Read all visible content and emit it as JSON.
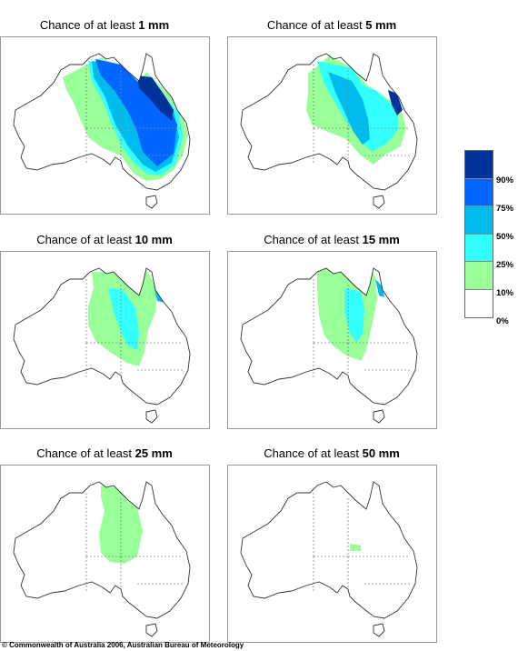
{
  "panels": [
    {
      "prefix": "Chance of at least ",
      "amount": "1 mm",
      "level": 1
    },
    {
      "prefix": "Chance of at least ",
      "amount": "5 mm",
      "level": 2
    },
    {
      "prefix": "Chance of at least ",
      "amount": "10 mm",
      "level": 3
    },
    {
      "prefix": "Chance of at least ",
      "amount": "15 mm",
      "level": 4
    },
    {
      "prefix": "Chance of at least ",
      "amount": "25 mm",
      "level": 5
    },
    {
      "prefix": "Chance of at least ",
      "amount": "50 mm",
      "level": 6
    }
  ],
  "legend": {
    "labels": [
      "90%",
      "75%",
      "50%",
      "25%",
      "10%",
      "0%"
    ],
    "colors": [
      "#003399",
      "#0066ff",
      "#00bbee",
      "#33ffff",
      "#99ff99",
      "#ffffff"
    ]
  },
  "copyright": "© Commonwealth of Australia 2006, Australian Bureau of Meteorology"
}
